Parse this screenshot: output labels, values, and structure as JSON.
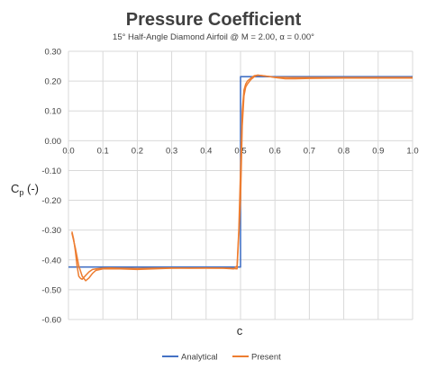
{
  "chart_data": {
    "type": "line",
    "title": "Pressure Coefficient",
    "subtitle": "15° Half-Angle Diamond Airfoil @ M = 2.00, α = 0.00°",
    "xlabel": "c",
    "ylabel": "C",
    "ylabel_sub": "p",
    "ylabel_suffix": " (-)",
    "xlim": [
      0.0,
      1.0
    ],
    "ylim": [
      -0.6,
      0.3
    ],
    "xticks": [
      0.0,
      0.1,
      0.2,
      0.3,
      0.4,
      0.5,
      0.6,
      0.7,
      0.8,
      0.9,
      1.0
    ],
    "xtick_labels": [
      "0.0",
      "0.1",
      "0.2",
      "0.3",
      "0.4",
      "0.5",
      "0.6",
      "0.7",
      "0.8",
      "0.9",
      "1.0"
    ],
    "yticks": [
      0.3,
      0.2,
      0.1,
      0.0,
      -0.1,
      -0.2,
      -0.3,
      -0.4,
      -0.5,
      -0.6
    ],
    "ytick_labels": [
      "0.30",
      "0.20",
      "0.10",
      "0.00",
      "-0.10",
      "-0.20",
      "-0.30",
      "-0.40",
      "-0.50",
      "-0.60"
    ],
    "grid": true,
    "legend_position": "bottom",
    "series": [
      {
        "name": "Analytical",
        "color": "#4472C4",
        "x": [
          0.0,
          0.5,
          0.5,
          1.0
        ],
        "y": [
          -0.424,
          -0.424,
          0.215,
          0.215
        ]
      },
      {
        "name": "Present",
        "color": "#ED7D31",
        "x": [
          0.01,
          0.015,
          0.02,
          0.025,
          0.03,
          0.035,
          0.04,
          0.05,
          0.06,
          0.07,
          0.08,
          0.1,
          0.12,
          0.15,
          0.2,
          0.25,
          0.3,
          0.35,
          0.4,
          0.45,
          0.48,
          0.49,
          0.495,
          0.5,
          0.505,
          0.51,
          0.515,
          0.52,
          0.53,
          0.54,
          0.55,
          0.57,
          0.6,
          0.65,
          0.7,
          0.8,
          0.9,
          1.0
        ],
        "y": [
          -0.305,
          -0.33,
          -0.37,
          -0.42,
          -0.455,
          -0.462,
          -0.465,
          -0.452,
          -0.44,
          -0.432,
          -0.43,
          -0.428,
          -0.427,
          -0.428,
          -0.429,
          -0.428,
          -0.427,
          -0.428,
          -0.428,
          -0.428,
          -0.43,
          -0.42,
          -0.3,
          -0.1,
          0.1,
          0.17,
          0.19,
          0.2,
          0.21,
          0.218,
          0.22,
          0.217,
          0.213,
          0.212,
          0.212,
          0.212,
          0.212,
          0.212
        ]
      },
      {
        "name": "",
        "color": "#ED7D31",
        "x": [
          0.01,
          0.02,
          0.03,
          0.04,
          0.05,
          0.06,
          0.07,
          0.08,
          0.1,
          0.15,
          0.2,
          0.3,
          0.4,
          0.47,
          0.49,
          0.5,
          0.505,
          0.51,
          0.515,
          0.52,
          0.53,
          0.54,
          0.55,
          0.56,
          0.58,
          0.6,
          0.63,
          0.66,
          0.7,
          0.8,
          0.9,
          1.0
        ],
        "y": [
          -0.31,
          -0.36,
          -0.42,
          -0.455,
          -0.47,
          -0.46,
          -0.445,
          -0.435,
          -0.43,
          -0.43,
          -0.432,
          -0.428,
          -0.427,
          -0.428,
          -0.43,
          -0.2,
          0.05,
          0.15,
          0.18,
          0.19,
          0.205,
          0.215,
          0.22,
          0.219,
          0.216,
          0.212,
          0.208,
          0.208,
          0.209,
          0.21,
          0.21,
          0.21
        ]
      }
    ]
  }
}
